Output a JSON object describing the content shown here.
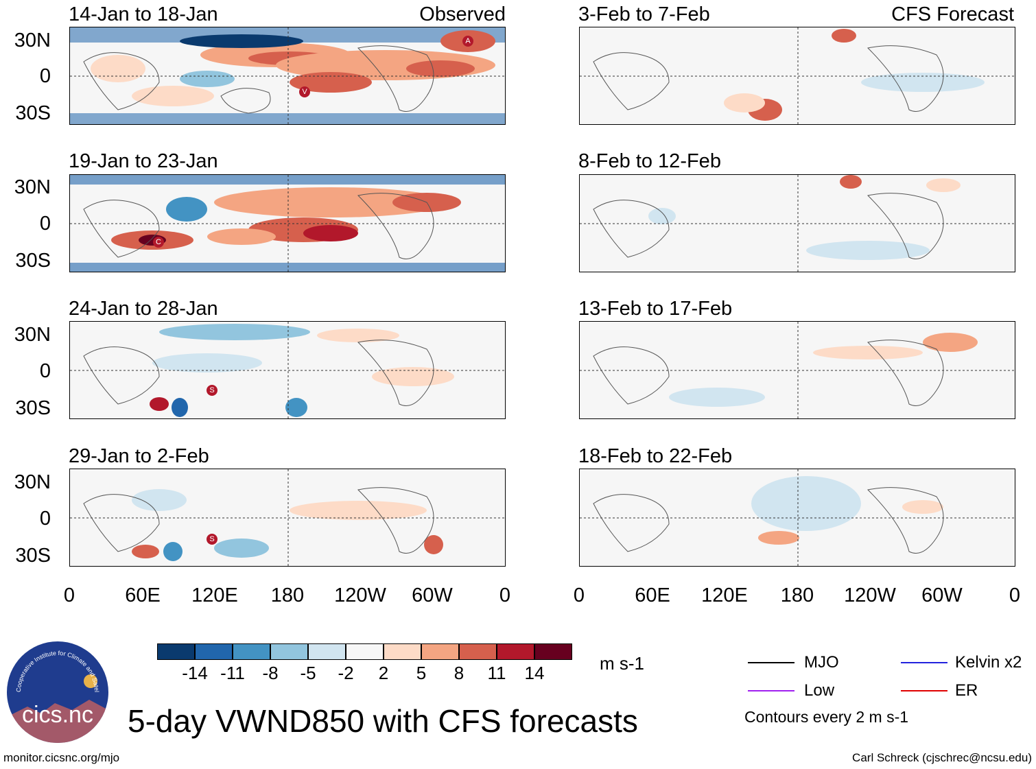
{
  "figure": {
    "main_title": "5-day VWND850 with CFS forecasts",
    "units": "m s-1",
    "observed_label": "Observed",
    "forecast_label": "CFS Forecast",
    "footer_left": "monitor.cicsnc.org/mjo",
    "footer_right": "Carl Schreck (cjschrec@ncsu.edu)",
    "logo_text": "cics.nc",
    "logo_ring_text": "Cooperative Institute for Climate and Satellites"
  },
  "axes": {
    "y_ticks": [
      "30N",
      "0",
      "30S"
    ],
    "x_ticks": [
      "0",
      "60E",
      "120E",
      "180",
      "120W",
      "60W",
      "0"
    ]
  },
  "panels": {
    "left": [
      {
        "title": "14-Jan to 18-Jan"
      },
      {
        "title": "19-Jan to 23-Jan"
      },
      {
        "title": "24-Jan to 28-Jan"
      },
      {
        "title": "29-Jan to 2-Feb"
      }
    ],
    "right": [
      {
        "title": "3-Feb to 7-Feb"
      },
      {
        "title": "8-Feb to 12-Feb"
      },
      {
        "title": "13-Feb to 17-Feb"
      },
      {
        "title": "18-Feb to 22-Feb"
      }
    ]
  },
  "colorbar": {
    "labels": [
      "-14",
      "-11",
      "-8",
      "-5",
      "-2",
      "2",
      "5",
      "8",
      "11",
      "14"
    ],
    "colors": [
      "#0a3a6e",
      "#2166ac",
      "#4393c3",
      "#92c5de",
      "#d1e5f0",
      "#f7f7f7",
      "#fddbc7",
      "#f4a582",
      "#d6604d",
      "#b2182b",
      "#67001f"
    ]
  },
  "legend": {
    "items": [
      {
        "label": "MJO",
        "color": "#000000"
      },
      {
        "label": "Kelvin x2",
        "color": "#2222dd"
      },
      {
        "label": "Low",
        "color": "#a020f0"
      },
      {
        "label": "ER",
        "color": "#e00000"
      }
    ],
    "note": "Contours every 2 m s-1"
  },
  "storm_labels": [
    "A",
    "V",
    "C",
    "S",
    "S"
  ]
}
